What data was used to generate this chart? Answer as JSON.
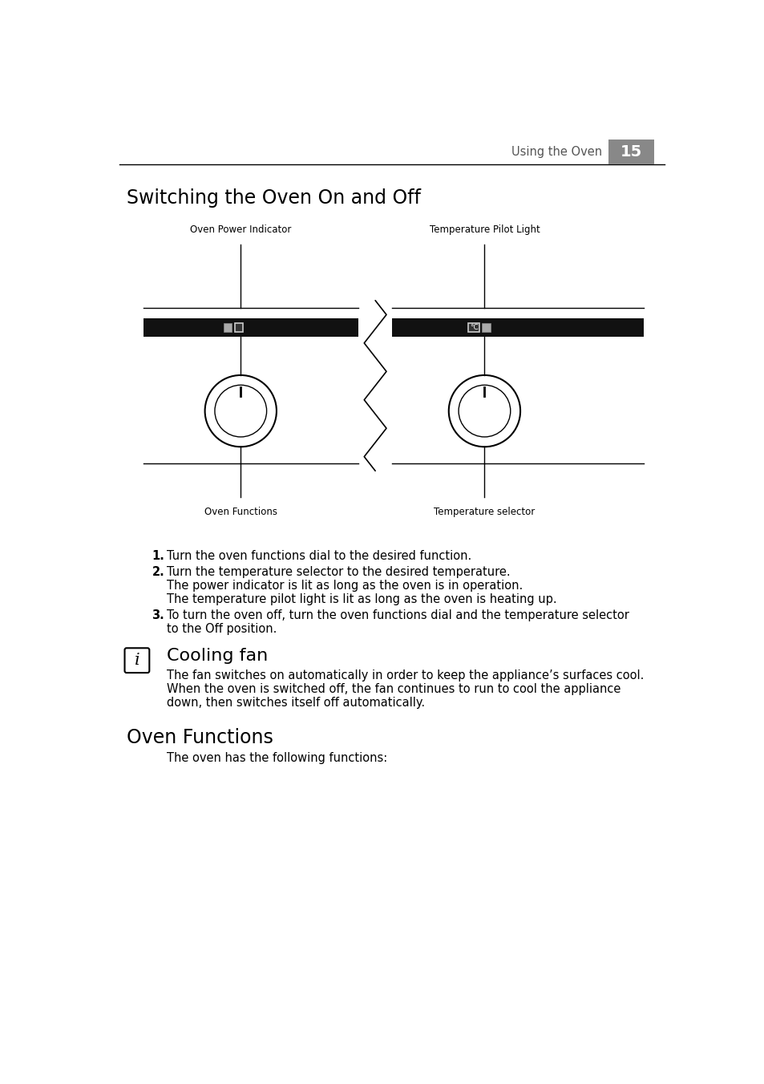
{
  "page_header_text": "Using the Oven",
  "page_number": "15",
  "section1_title": "Switching the Oven On and Off",
  "label_oven_power": "Oven Power Indicator",
  "label_temp_pilot": "Temperature Pilot Light",
  "label_oven_functions": "Oven Functions",
  "label_temp_selector": "Temperature selector",
  "step1": "Turn the oven functions dial to the desired function.",
  "step2": "Turn the temperature selector to the desired temperature.",
  "step2_sub1": "The power indicator is lit as long as the oven is in operation.",
  "step2_sub2": "The temperature pilot light is lit as long as the oven is heating up.",
  "step3_line1": "To turn the oven off, turn the oven functions dial and the temperature selector",
  "step3_line2": "to the Off position.",
  "section2_title": "Cooling fan",
  "cooling_line1": "The fan switches on automatically in order to keep the appliance’s surfaces cool.",
  "cooling_line2": "When the oven is switched off, the fan continues to run to cool the appliance",
  "cooling_line3": "down, then switches itself off automatically.",
  "section3_title": "Oven Functions",
  "section3_sub": "The oven has the following functions:",
  "bg_color": "#ffffff",
  "black": "#000000",
  "text_gray": "#444444",
  "page_num_bg": "#888888",
  "panel_black": "#111111"
}
